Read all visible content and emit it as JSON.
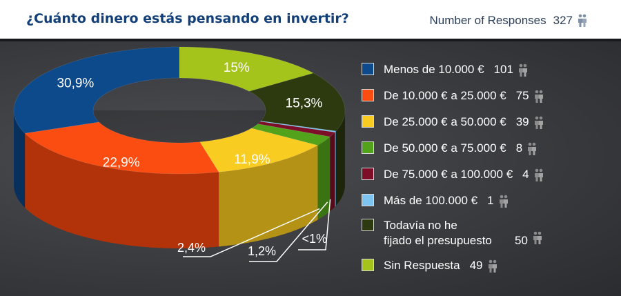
{
  "header": {
    "question": "¿Cuánto dinero estás pensando en invertir?",
    "responses_label": "Number of Responses",
    "responses_count": "327"
  },
  "colors": {
    "header_text": "#123f77",
    "panel_bg": "#3a3b3e"
  },
  "chart_data": {
    "type": "pie",
    "style": "3d-donut",
    "title": "¿Cuánto dinero estás pensando en invertir?",
    "total_responses": 327,
    "series": [
      {
        "name": "Menos de 10.000 €",
        "value": 101,
        "percent_label": "30,9%",
        "color": "#0d4a8c",
        "side_color": "#08305d"
      },
      {
        "name": "De 10.000 € a 25.000 €",
        "value": 75,
        "percent_label": "22,9%",
        "color": "#fb4d12",
        "side_color": "#b2330a"
      },
      {
        "name": "De 25.000 € a 50.000 €",
        "value": 39,
        "percent_label": "11,9%",
        "color": "#f9cc22",
        "side_color": "#b39215"
      },
      {
        "name": "De 50.000 € a 75.000 €",
        "value": 8,
        "percent_label": "2,4%",
        "color": "#52a31b",
        "side_color": "#3a7412"
      },
      {
        "name": "De 75.000 € a 100.000 €",
        "value": 4,
        "percent_label": "1,2%",
        "color": "#7c0f27",
        "side_color": "#560a1b"
      },
      {
        "name": "Más de 100.000 €",
        "value": 1,
        "percent_label": "<1%",
        "color": "#7ec4f1",
        "side_color": "#588aab"
      },
      {
        "name": "Todavía no he\nfijado el presupuesto",
        "value": 50,
        "percent_label": "15,3%",
        "color": "#2d3a10",
        "side_color": "#1d260a"
      },
      {
        "name": "Sin Respuesta",
        "value": 49,
        "percent_label": "15%",
        "color": "#a4c41c",
        "side_color": "#718813"
      }
    ]
  },
  "icons": {
    "people": "people-icon"
  }
}
